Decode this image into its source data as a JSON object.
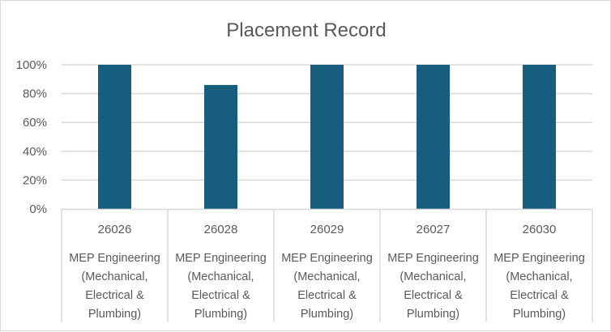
{
  "chart_data": {
    "type": "bar",
    "title": "Placement Record",
    "xlabel": "",
    "ylabel": "",
    "ylim": [
      0,
      1
    ],
    "yticks": [
      0,
      0.2,
      0.4,
      0.6,
      0.8,
      1.0
    ],
    "ytick_labels": [
      "0%",
      "20%",
      "40%",
      "60%",
      "80%",
      "100%"
    ],
    "grid": true,
    "legend": "none",
    "bar_color": "#175e7e",
    "categories": [
      {
        "code": "26026",
        "desc_lines": [
          "MEP Engineering",
          "(Mechanical,",
          "Electrical &",
          "Plumbing)"
        ]
      },
      {
        "code": "26028",
        "desc_lines": [
          "MEP Engineering",
          "(Mechanical,",
          "Electrical &",
          "Plumbing)"
        ]
      },
      {
        "code": "26029",
        "desc_lines": [
          "MEP Engineering",
          "(Mechanical,",
          "Electrical &",
          "Plumbing)"
        ]
      },
      {
        "code": "26027",
        "desc_lines": [
          "MEP Engineering",
          "(Mechanical,",
          "Electrical &",
          "Plumbing)"
        ]
      },
      {
        "code": "26030",
        "desc_lines": [
          "MEP Engineering",
          "(Mechanical,",
          "Electrical &",
          "Plumbing)"
        ]
      }
    ],
    "values": [
      1.0,
      0.86,
      1.0,
      1.0,
      1.0
    ]
  }
}
